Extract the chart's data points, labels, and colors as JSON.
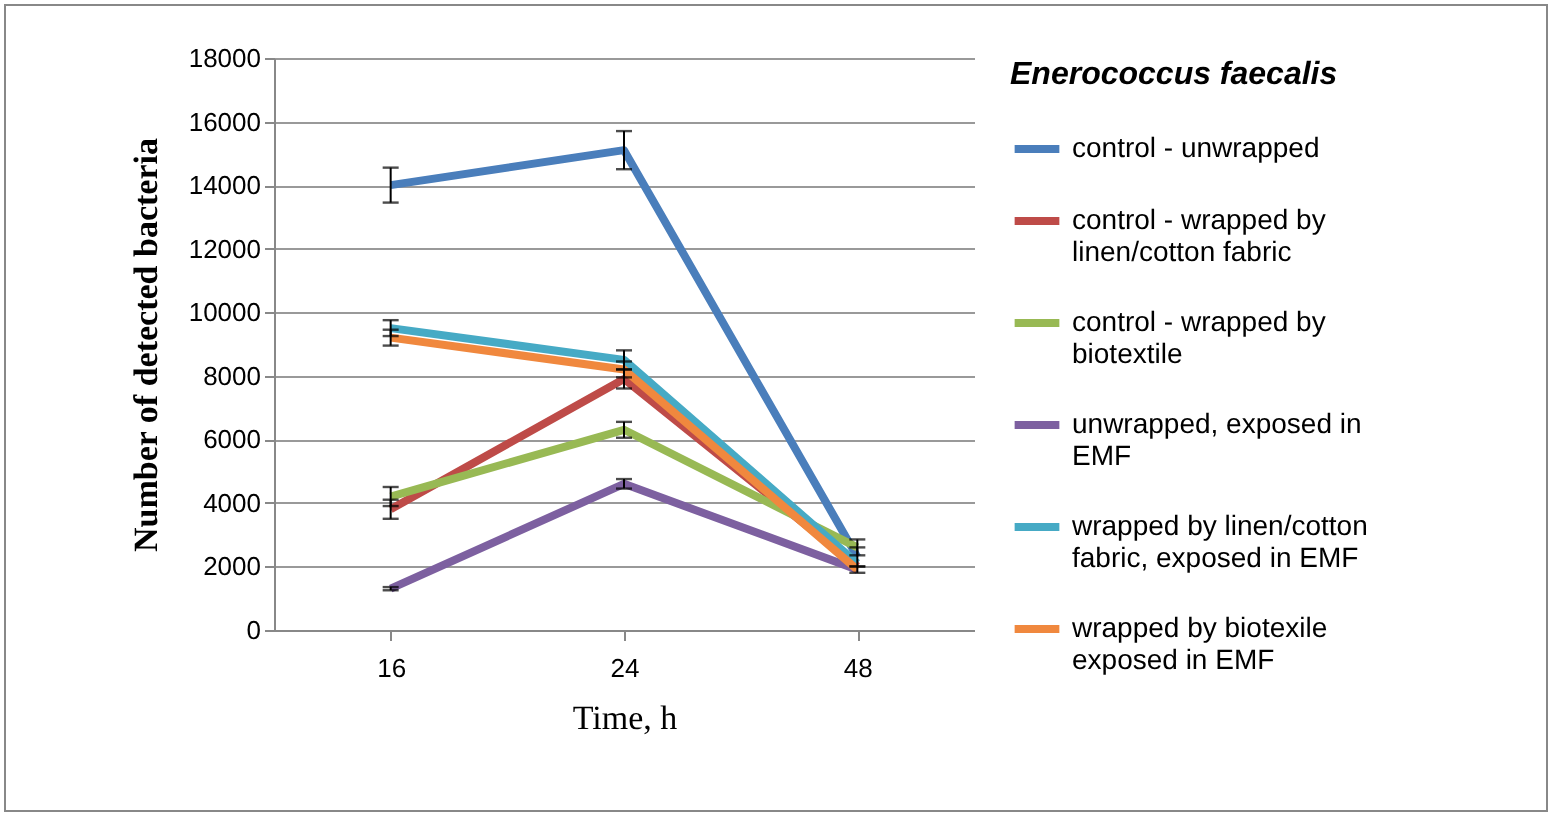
{
  "chart_data": {
    "type": "line",
    "xlabel": "Time, h",
    "ylabel": "Number of detected bacteria",
    "legend_title": "Enerococcus faecalis",
    "categories": [
      "16",
      "24",
      "48"
    ],
    "series": [
      {
        "name": "control - unwrapped",
        "color": "#4a7ebb",
        "values": [
          14000,
          15100,
          2300
        ],
        "errors": [
          550,
          600,
          300
        ]
      },
      {
        "name": "control - wrapped by linen/cotton fabric",
        "color": "#be4b48",
        "values": [
          3800,
          7900,
          2000
        ],
        "errors": [
          300,
          300,
          null
        ]
      },
      {
        "name": "control - wrapped  by biotextile",
        "color": "#98b954",
        "values": [
          4200,
          6300,
          2600
        ],
        "errors": [
          300,
          250,
          250
        ]
      },
      {
        "name": "unwrapped, exposed in EMF",
        "color": "#7d60a0",
        "values": [
          1300,
          4600,
          1900
        ],
        "errors": [
          50,
          150,
          100
        ]
      },
      {
        "name": "wrapped by linen/cotton fabric, exposed in EMF",
        "color": "#46aac5",
        "values": [
          9500,
          8500,
          2100
        ],
        "errors": [
          250,
          300,
          null
        ]
      },
      {
        "name": "wrapped by biotexile exposed in EMF",
        "color": "#f0883e",
        "values": [
          9200,
          8200,
          1900
        ],
        "errors": [
          250,
          250,
          null
        ]
      }
    ],
    "ylim": [
      0,
      18000
    ],
    "yticks": [
      0,
      2000,
      4000,
      6000,
      8000,
      10000,
      12000,
      14000,
      16000,
      18000
    ],
    "grid": "y",
    "legend": "right",
    "marker": "none",
    "line_style": "solid"
  }
}
